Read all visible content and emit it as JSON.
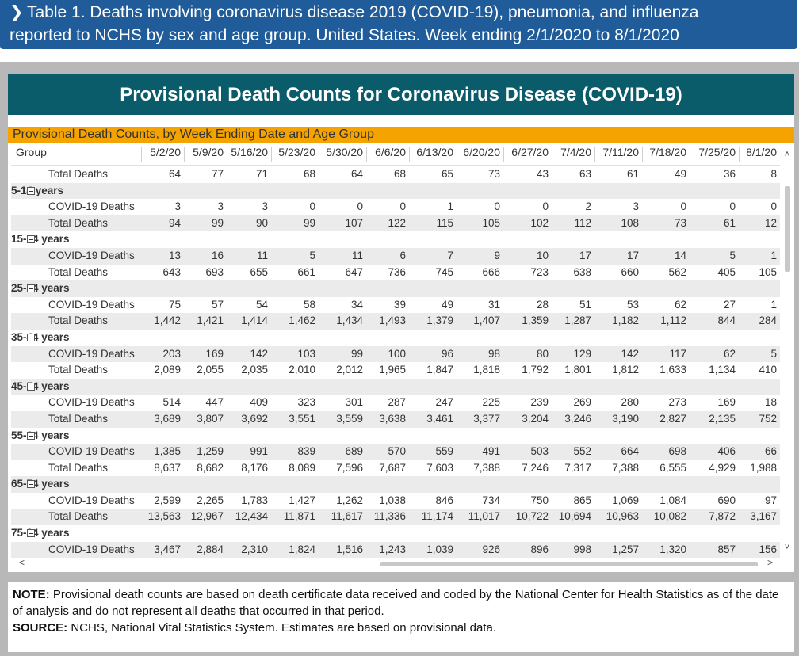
{
  "header": {
    "chevron": "❯",
    "line1": "Table 1. Deaths involving coronavirus disease 2019 (COVID-19), pneumonia, and influenza",
    "line2": "reported to NCHS by sex and age group. United States. Week ending 2/1/2020 to 8/1/2020"
  },
  "report": {
    "title": "Provisional Death Counts for Coronavirus Disease (COVID-19)",
    "visual_title": "Provisional Death Counts, by Week Ending Date and Age Group"
  },
  "matrix": {
    "group_header": "Group",
    "dates": [
      "5/2/20",
      "5/9/20",
      "5/16/20",
      "5/23/20",
      "5/30/20",
      "6/6/20",
      "6/13/20",
      "6/20/20",
      "6/27/20",
      "7/4/20",
      "7/11/20",
      "7/18/20",
      "7/25/20",
      "8/1/20"
    ],
    "rows": [
      {
        "type": "sub",
        "label": "Total Deaths",
        "values": [
          "64",
          "77",
          "71",
          "68",
          "64",
          "68",
          "65",
          "73",
          "43",
          "63",
          "61",
          "49",
          "36",
          "8"
        ]
      },
      {
        "type": "group",
        "label": "5-14 years"
      },
      {
        "type": "sub",
        "label": "COVID-19 Deaths",
        "values": [
          "3",
          "3",
          "3",
          "0",
          "0",
          "0",
          "1",
          "0",
          "0",
          "2",
          "3",
          "0",
          "0",
          "0"
        ]
      },
      {
        "type": "sub",
        "label": "Total Deaths",
        "values": [
          "94",
          "99",
          "90",
          "99",
          "107",
          "122",
          "115",
          "105",
          "102",
          "112",
          "108",
          "73",
          "61",
          "12"
        ]
      },
      {
        "type": "group",
        "label": "15-24 years"
      },
      {
        "type": "sub",
        "label": "COVID-19 Deaths",
        "values": [
          "13",
          "16",
          "11",
          "5",
          "11",
          "6",
          "7",
          "9",
          "10",
          "17",
          "17",
          "14",
          "5",
          "1"
        ]
      },
      {
        "type": "sub",
        "label": "Total Deaths",
        "values": [
          "643",
          "693",
          "655",
          "661",
          "647",
          "736",
          "745",
          "666",
          "723",
          "638",
          "660",
          "562",
          "405",
          "105"
        ]
      },
      {
        "type": "group",
        "label": "25-34 years"
      },
      {
        "type": "sub",
        "label": "COVID-19 Deaths",
        "values": [
          "75",
          "57",
          "54",
          "58",
          "34",
          "39",
          "49",
          "31",
          "28",
          "51",
          "53",
          "62",
          "27",
          "1"
        ]
      },
      {
        "type": "sub",
        "label": "Total Deaths",
        "values": [
          "1,442",
          "1,421",
          "1,414",
          "1,462",
          "1,434",
          "1,493",
          "1,379",
          "1,407",
          "1,359",
          "1,287",
          "1,182",
          "1,112",
          "844",
          "284"
        ]
      },
      {
        "type": "group",
        "label": "35-44 years"
      },
      {
        "type": "sub",
        "label": "COVID-19 Deaths",
        "values": [
          "203",
          "169",
          "142",
          "103",
          "99",
          "100",
          "96",
          "98",
          "80",
          "129",
          "142",
          "117",
          "62",
          "5"
        ]
      },
      {
        "type": "sub",
        "label": "Total Deaths",
        "values": [
          "2,089",
          "2,055",
          "2,035",
          "2,010",
          "2,012",
          "1,965",
          "1,847",
          "1,818",
          "1,792",
          "1,801",
          "1,812",
          "1,633",
          "1,134",
          "410"
        ]
      },
      {
        "type": "group",
        "label": "45-54 years"
      },
      {
        "type": "sub",
        "label": "COVID-19 Deaths",
        "values": [
          "514",
          "447",
          "409",
          "323",
          "301",
          "287",
          "247",
          "225",
          "239",
          "269",
          "280",
          "273",
          "169",
          "18"
        ]
      },
      {
        "type": "sub",
        "label": "Total Deaths",
        "values": [
          "3,689",
          "3,807",
          "3,692",
          "3,551",
          "3,559",
          "3,638",
          "3,461",
          "3,377",
          "3,204",
          "3,246",
          "3,190",
          "2,827",
          "2,135",
          "752"
        ]
      },
      {
        "type": "group",
        "label": "55-64 years"
      },
      {
        "type": "sub",
        "label": "COVID-19 Deaths",
        "values": [
          "1,385",
          "1,259",
          "991",
          "839",
          "689",
          "570",
          "559",
          "491",
          "503",
          "552",
          "664",
          "698",
          "406",
          "66"
        ]
      },
      {
        "type": "sub",
        "label": "Total Deaths",
        "values": [
          "8,637",
          "8,682",
          "8,176",
          "8,089",
          "7,596",
          "7,687",
          "7,603",
          "7,388",
          "7,246",
          "7,317",
          "7,388",
          "6,555",
          "4,929",
          "1,988"
        ]
      },
      {
        "type": "group",
        "label": "65-74 years"
      },
      {
        "type": "sub",
        "label": "COVID-19 Deaths",
        "values": [
          "2,599",
          "2,265",
          "1,783",
          "1,427",
          "1,262",
          "1,038",
          "846",
          "734",
          "750",
          "865",
          "1,069",
          "1,084",
          "690",
          "97"
        ]
      },
      {
        "type": "sub",
        "label": "Total Deaths",
        "values": [
          "13,563",
          "12,967",
          "12,434",
          "11,871",
          "11,617",
          "11,336",
          "11,174",
          "11,017",
          "10,722",
          "10,694",
          "10,963",
          "10,082",
          "7,872",
          "3,167"
        ]
      },
      {
        "type": "group",
        "label": "75-84 years"
      },
      {
        "type": "sub",
        "label": "COVID-19 Deaths",
        "values": [
          "3,467",
          "2,884",
          "2,310",
          "1,824",
          "1,516",
          "1,243",
          "1,039",
          "926",
          "896",
          "998",
          "1,257",
          "1,320",
          "857",
          "156"
        ]
      }
    ]
  },
  "scroll": {
    "up": "˄",
    "down": "˅",
    "left": "<",
    "right": ">"
  },
  "note": {
    "note_label": "NOTE:",
    "note_text": " Provisional death counts are based on death certificate data received and coded by the National Center for Health Statistics as of the date of analysis and do not represent all deaths that occurred in that period.",
    "source_label": "SOURCE:",
    "source_text": " NCHS, National Vital Statistics System. Estimates are based on provisional data."
  },
  "colors": {
    "banner": "#1f5c99",
    "title_bar": "#0b5c6b",
    "visual_header": "#f5a300",
    "frame": "#b8b8b8"
  }
}
